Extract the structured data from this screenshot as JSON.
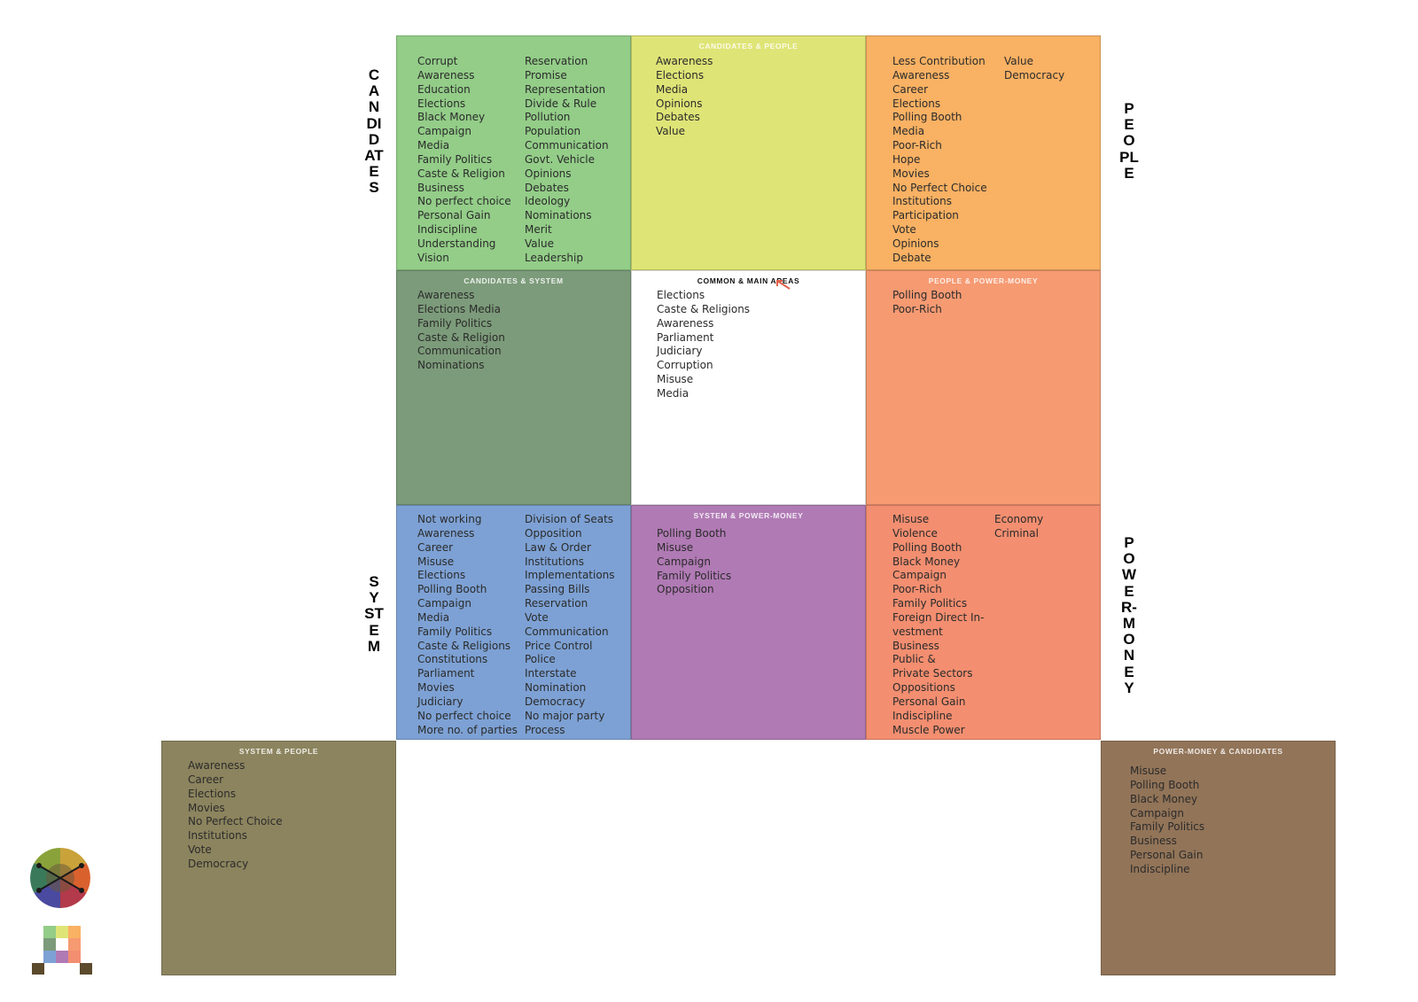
{
  "side_labels": {
    "candidates": "CANDIDATES",
    "people": "PEOPLE",
    "system": "SYSTEM",
    "power_money": "POWER-MONEY"
  },
  "colors": {
    "candidates": "#93cd88",
    "candidates_people": "#dfe476",
    "people": "#f9b163",
    "candidates_system": "#7c9b7a",
    "common": "#ffffff",
    "people_power": "#f69a72",
    "system": "#7da1d4",
    "system_power": "#b07ab4",
    "power_money": "#f38e70",
    "system_people": "#8c845e",
    "power_candidates": "#927458"
  },
  "cells": {
    "candidates": {
      "title": "",
      "col1": [
        "Corrupt",
        "Awareness",
        "Education",
        "Elections",
        "Black Money",
        "Campaign",
        "Media",
        "Family Politics",
        "Caste & Religion",
        "Business",
        "No perfect choice",
        "Personal Gain",
        "Indiscipline",
        "Understanding",
        "Vision"
      ],
      "col2": [
        "Reservation",
        "Promise",
        "Representation",
        "Divide & Rule",
        "Pollution",
        "Population",
        "Communication",
        "Govt. Vehicle",
        "Opinions",
        "Debates",
        "Ideology",
        "Nominations",
        "Merit",
        "Value",
        "Leadership"
      ]
    },
    "candidates_people": {
      "title": "CANDIDATES & PEOPLE",
      "col1": [
        "Awareness",
        "Elections",
        "Media",
        "Opinions",
        "Debates",
        "Value"
      ]
    },
    "people": {
      "title": "",
      "col1": [
        "Less Contribution",
        "Awareness",
        "Career",
        "Elections",
        "Polling Booth",
        "Media",
        "Poor-Rich",
        "Hope",
        "Movies",
        "No Perfect Choice",
        "Institutions",
        "Participation",
        "Vote",
        "Opinions",
        "Debate"
      ],
      "col2": [
        "Value",
        "Democracy"
      ]
    },
    "candidates_system": {
      "title": "CANDIDATES & SYSTEM",
      "col1": [
        "Awareness",
        "Elections Media",
        "Family Politics",
        "Caste & Religion",
        "Communication",
        "Nominations"
      ]
    },
    "common": {
      "title": "COMMON & MAIN AREAS",
      "col1": [
        "Elections",
        "Caste & Religions",
        "Awareness",
        "Parliament",
        "Judiciary",
        "Corruption",
        "Misuse",
        "Media"
      ]
    },
    "people_power": {
      "title": "PEOPLE & POWER-MONEY",
      "col1": [
        "Polling Booth",
        "Poor-Rich"
      ]
    },
    "system": {
      "title": "",
      "col1": [
        "Not working",
        "Awareness",
        "Career",
        "Misuse",
        "Elections",
        "Polling Booth",
        "Campaign",
        "Media",
        "Family Politics",
        "Caste & Religions",
        "Constitutions",
        "Parliament",
        "Movies",
        "Judiciary",
        "No perfect choice",
        "More no. of parties"
      ],
      "col2": [
        "Division of Seats",
        "Opposition",
        "Law & Order",
        "Institutions",
        "Implementations",
        "Passing Bills",
        "Reservation",
        "Vote",
        "Communication",
        "Price Control",
        "Police",
        "Interstate",
        "Nomination",
        "Democracy",
        "No major party",
        "Process"
      ]
    },
    "system_power": {
      "title": "SYSTEM & POWER-MONEY",
      "col1": [
        "Polling Booth",
        "Misuse",
        "Campaign",
        "Family Politics",
        "Opposition"
      ]
    },
    "power_money": {
      "title": "",
      "col1": [
        "Misuse",
        "Violence",
        "Polling Booth",
        "Black Money",
        "Campaign",
        "Poor-Rich",
        "Family Politics",
        "Foreign Direct In-",
        "vestment",
        "Business",
        "Public &",
        "Private Sectors",
        "Oppositions",
        "Personal Gain",
        "Indiscipline",
        "Muscle Power"
      ],
      "col2": [
        "Economy",
        "Criminal"
      ]
    },
    "system_people": {
      "title": "SYSTEM & PEOPLE",
      "col1": [
        "Awareness",
        "Career",
        "Elections",
        "Movies",
        "No Perfect Choice",
        "Institutions",
        "Vote",
        "Democracy"
      ]
    },
    "power_candidates": {
      "title": "POWER-MONEY & CANDIDATES",
      "col1": [
        "Misuse",
        "Polling Booth",
        "Black Money",
        "Campaign",
        "Family Politics",
        "Business",
        "Personal Gain",
        "Indiscipline"
      ]
    }
  },
  "logo": {
    "swatches": [
      "#93cd88",
      "#dfe476",
      "#f9b163",
      "#7c9b7a",
      "#ffffff",
      "#f69a72",
      "#7da1d4",
      "#b07ab4",
      "#f38e70"
    ],
    "feet": "#5c4a2c"
  }
}
